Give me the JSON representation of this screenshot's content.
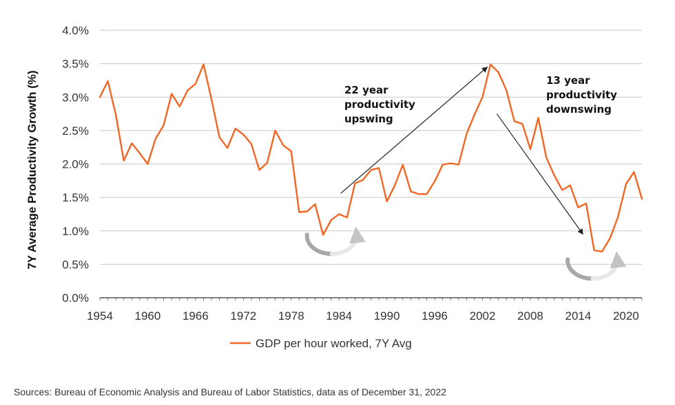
{
  "chart_data": {
    "type": "line",
    "ylabel": "7Y Average Productivity Growth (%)",
    "xlabel": "",
    "xlim": [
      1954,
      2022
    ],
    "ylim": [
      0,
      4
    ],
    "x_ticks": [
      "1954",
      "1960",
      "1966",
      "1972",
      "1978",
      "1984",
      "1990",
      "1996",
      "2002",
      "2008",
      "2014",
      "2020"
    ],
    "y_ticks": [
      "0.0%",
      "0.5%",
      "1.0%",
      "1.5%",
      "2.0%",
      "2.5%",
      "3.0%",
      "3.5%",
      "4.0%"
    ],
    "grid": "horizontal",
    "legend": "bottom-center",
    "series": [
      {
        "name": "GDP per hour worked, 7Y Avg",
        "color": "#F26522",
        "x": [
          1954,
          1955,
          1956,
          1957,
          1958,
          1959,
          1960,
          1961,
          1962,
          1963,
          1964,
          1965,
          1966,
          1967,
          1968,
          1969,
          1970,
          1971,
          1972,
          1973,
          1974,
          1975,
          1976,
          1977,
          1978,
          1979,
          1980,
          1981,
          1982,
          1983,
          1984,
          1985,
          1986,
          1987,
          1988,
          1989,
          1990,
          1991,
          1992,
          1993,
          1994,
          1995,
          1996,
          1997,
          1998,
          1999,
          2000,
          2001,
          2002,
          2003,
          2004,
          2005,
          2006,
          2007,
          2008,
          2009,
          2010,
          2011,
          2012,
          2013,
          2014,
          2015,
          2016,
          2017,
          2018,
          2019,
          2020,
          2021,
          2022
        ],
        "values": [
          3.0,
          3.24,
          2.74,
          2.05,
          2.31,
          2.16,
          2.0,
          2.38,
          2.58,
          3.05,
          2.86,
          3.1,
          3.2,
          3.49,
          2.97,
          2.4,
          2.24,
          2.53,
          2.44,
          2.3,
          1.91,
          2.02,
          2.5,
          2.28,
          2.19,
          1.28,
          1.29,
          1.4,
          0.94,
          1.16,
          1.25,
          1.2,
          1.71,
          1.76,
          1.91,
          1.94,
          1.44,
          1.68,
          1.99,
          1.59,
          1.55,
          1.55,
          1.74,
          1.99,
          2.01,
          1.99,
          2.45,
          2.74,
          3.0,
          3.49,
          3.37,
          3.1,
          2.64,
          2.6,
          2.22,
          2.69,
          2.1,
          1.83,
          1.61,
          1.68,
          1.35,
          1.41,
          0.71,
          0.69,
          0.89,
          1.21,
          1.7,
          1.88,
          1.48
        ]
      }
    ],
    "annotations": [
      {
        "lines": [
          "22 year",
          "productivity",
          "upswing"
        ],
        "arrow_from": [
          1984.2,
          1.56
        ],
        "arrow_to": [
          2002.6,
          3.45
        ]
      },
      {
        "lines": [
          "13 year",
          "productivity",
          "downswing"
        ],
        "arrow_from": [
          2003.8,
          2.75
        ],
        "arrow_to": [
          2014.6,
          0.95
        ]
      }
    ],
    "cycle_markers": [
      {
        "center": [
          1983.1,
          0.8
        ],
        "color_light": "#e8e8e8",
        "color_dark": "#a8a8a8"
      },
      {
        "center": [
          2015.8,
          0.43
        ],
        "color_light": "#e8e8e8",
        "color_dark": "#a8a8a8"
      }
    ]
  },
  "source": "Sources: Bureau of Economic Analysis and Bureau of Labor Statistics, data as of December 31, 2022"
}
